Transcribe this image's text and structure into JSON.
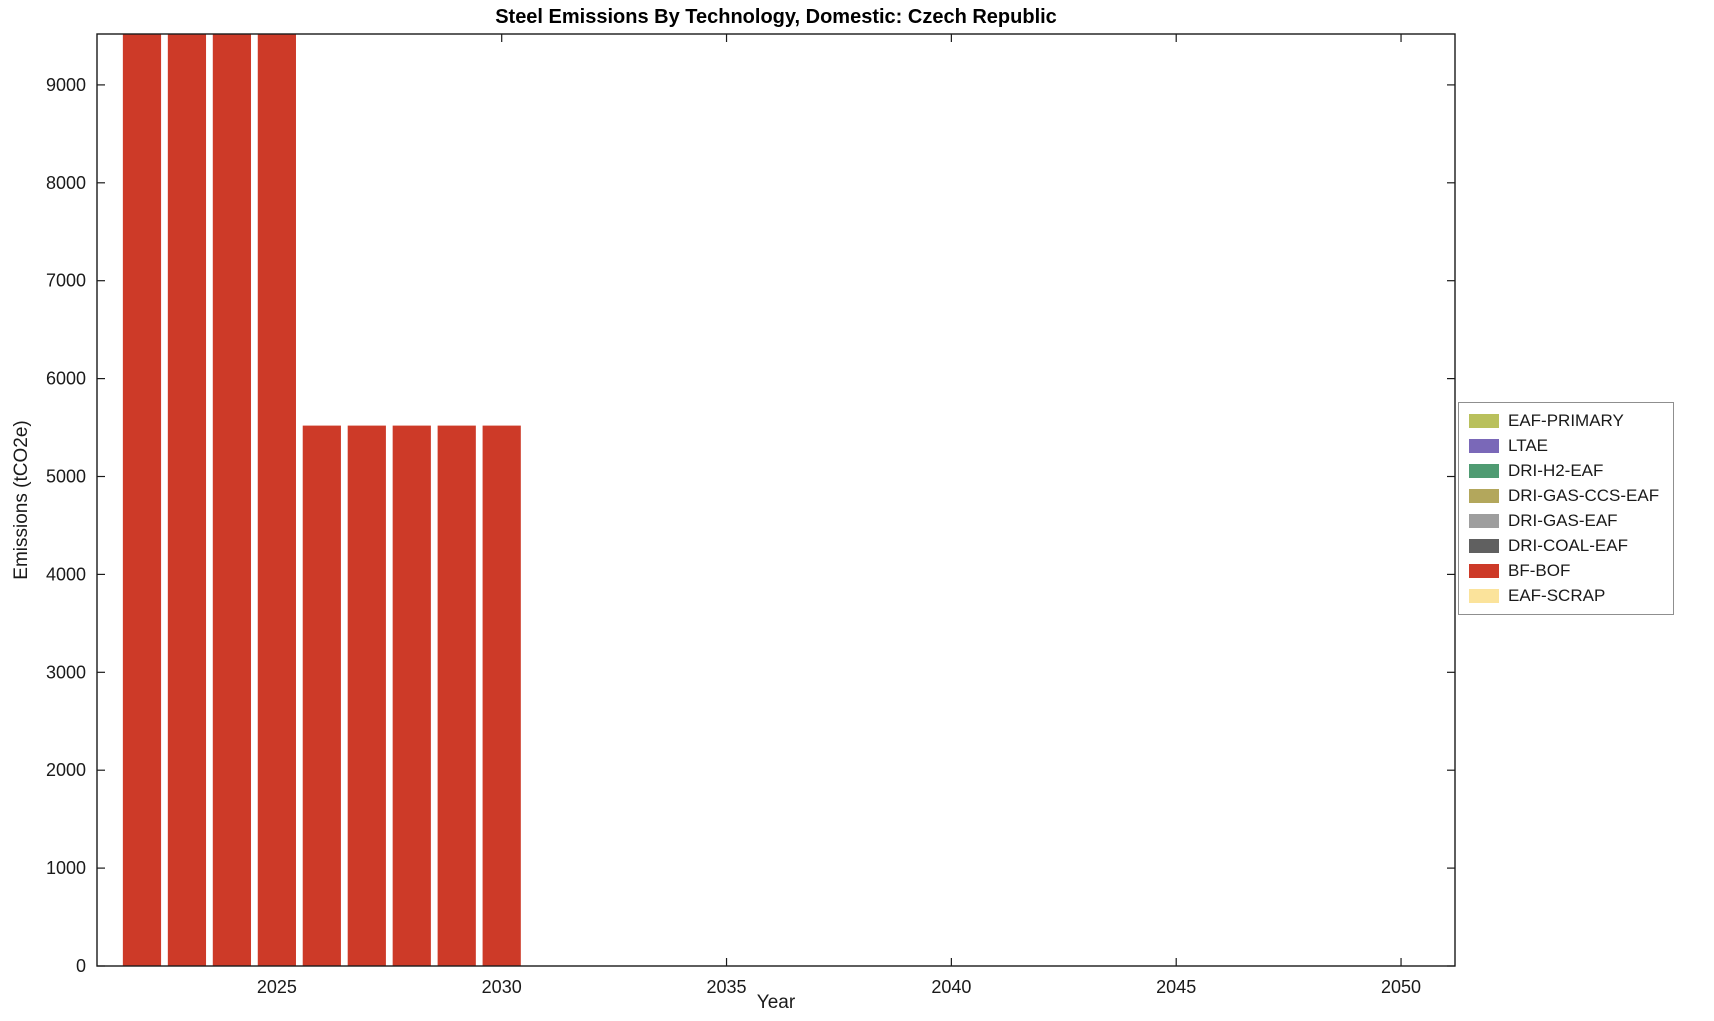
{
  "chart_data": {
    "type": "bar",
    "title": "Steel Emissions By Technology, Domestic: Czech Republic",
    "xlabel": "Year",
    "ylabel": "Emissions (tCO2e)",
    "xlim": [
      2021,
      2051.2
    ],
    "ylim": [
      0,
      9520
    ],
    "xticks": [
      2025,
      2030,
      2035,
      2040,
      2045,
      2050
    ],
    "yticks": [
      0,
      1000,
      2000,
      3000,
      4000,
      5000,
      6000,
      7000,
      8000,
      9000
    ],
    "grid": false,
    "bar_width_years": 0.85,
    "series": [
      {
        "name": "BF-BOF",
        "color": "#cd3a28",
        "x": [
          2022,
          2023,
          2024,
          2025,
          2026,
          2027,
          2028,
          2029,
          2030
        ],
        "values": [
          9520,
          9520,
          9520,
          9520,
          5520,
          5520,
          5520,
          5520,
          5520
        ],
        "note": "2022-2025 bars are clipped at the top of the axes (value at or above axis max)"
      }
    ],
    "legend": {
      "position": "right-outside",
      "entries": [
        {
          "label": "EAF-PRIMARY",
          "color": "#b9c05c"
        },
        {
          "label": "LTAE",
          "color": "#7a68b8"
        },
        {
          "label": "DRI-H2-EAF",
          "color": "#4f9b72"
        },
        {
          "label": "DRI-GAS-CCS-EAF",
          "color": "#b3a75c"
        },
        {
          "label": "DRI-GAS-EAF",
          "color": "#9e9e9e"
        },
        {
          "label": "DRI-COAL-EAF",
          "color": "#606060"
        },
        {
          "label": "BF-BOF",
          "color": "#cd3a28"
        },
        {
          "label": "EAF-SCRAP",
          "color": "#fbe39b"
        }
      ]
    }
  }
}
